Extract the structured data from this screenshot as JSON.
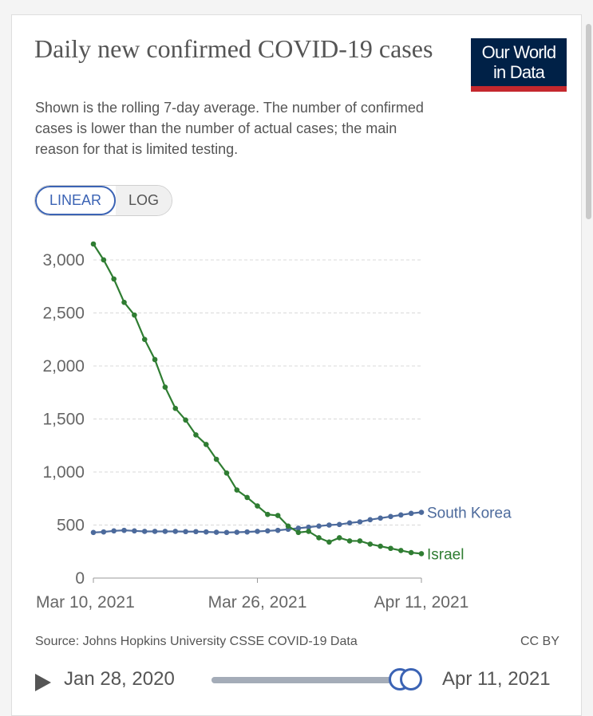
{
  "title": "Daily new confirmed COVID-19 cases",
  "subtitle": "Shown is the rolling 7-day average. The number of confirmed cases is lower than the number of actual cases; the main reason for that is limited testing.",
  "logo": {
    "line1": "Our World",
    "line2": "in Data"
  },
  "scale_toggle": {
    "options": [
      "LINEAR",
      "LOG"
    ],
    "selected": "LINEAR"
  },
  "source": "Source: Johns Hopkins University CSSE COVID-19 Data",
  "license": "CC BY",
  "timeline": {
    "start_date": "Jan 28, 2020",
    "end_date": "Apr 11, 2021",
    "position": 1.0
  },
  "colors": {
    "south_korea": "#4c6a9c",
    "israel": "#2f7d32",
    "accent": "#3b63b4",
    "logo_bg": "#002147",
    "logo_bar": "#c4282d"
  },
  "chart_data": {
    "type": "line",
    "x": [
      "2021-03-10",
      "2021-03-11",
      "2021-03-12",
      "2021-03-13",
      "2021-03-14",
      "2021-03-15",
      "2021-03-16",
      "2021-03-17",
      "2021-03-18",
      "2021-03-19",
      "2021-03-20",
      "2021-03-21",
      "2021-03-22",
      "2021-03-23",
      "2021-03-24",
      "2021-03-25",
      "2021-03-26",
      "2021-03-27",
      "2021-03-28",
      "2021-03-29",
      "2021-03-30",
      "2021-03-31",
      "2021-04-01",
      "2021-04-02",
      "2021-04-03",
      "2021-04-04",
      "2021-04-05",
      "2021-04-06",
      "2021-04-07",
      "2021-04-08",
      "2021-04-09",
      "2021-04-10",
      "2021-04-11"
    ],
    "xticks": [
      "Mar 10, 2021",
      "Mar 26, 2021",
      "Apr 11, 2021"
    ],
    "yticks": [
      "0",
      "500",
      "1,000",
      "1,500",
      "2,000",
      "2,500",
      "3,000"
    ],
    "ylim": [
      0,
      3150
    ],
    "grid": true,
    "series": [
      {
        "name": "South Korea",
        "values": [
          430,
          435,
          445,
          450,
          445,
          440,
          440,
          440,
          440,
          438,
          438,
          435,
          432,
          430,
          432,
          435,
          440,
          445,
          450,
          460,
          470,
          480,
          490,
          500,
          505,
          520,
          530,
          550,
          565,
          580,
          595,
          610,
          620
        ]
      },
      {
        "name": "Israel",
        "values": [
          3150,
          3000,
          2820,
          2600,
          2480,
          2250,
          2060,
          1800,
          1600,
          1490,
          1350,
          1260,
          1120,
          990,
          830,
          760,
          680,
          600,
          590,
          490,
          430,
          440,
          380,
          340,
          380,
          350,
          350,
          320,
          300,
          280,
          260,
          240,
          230
        ]
      }
    ]
  }
}
